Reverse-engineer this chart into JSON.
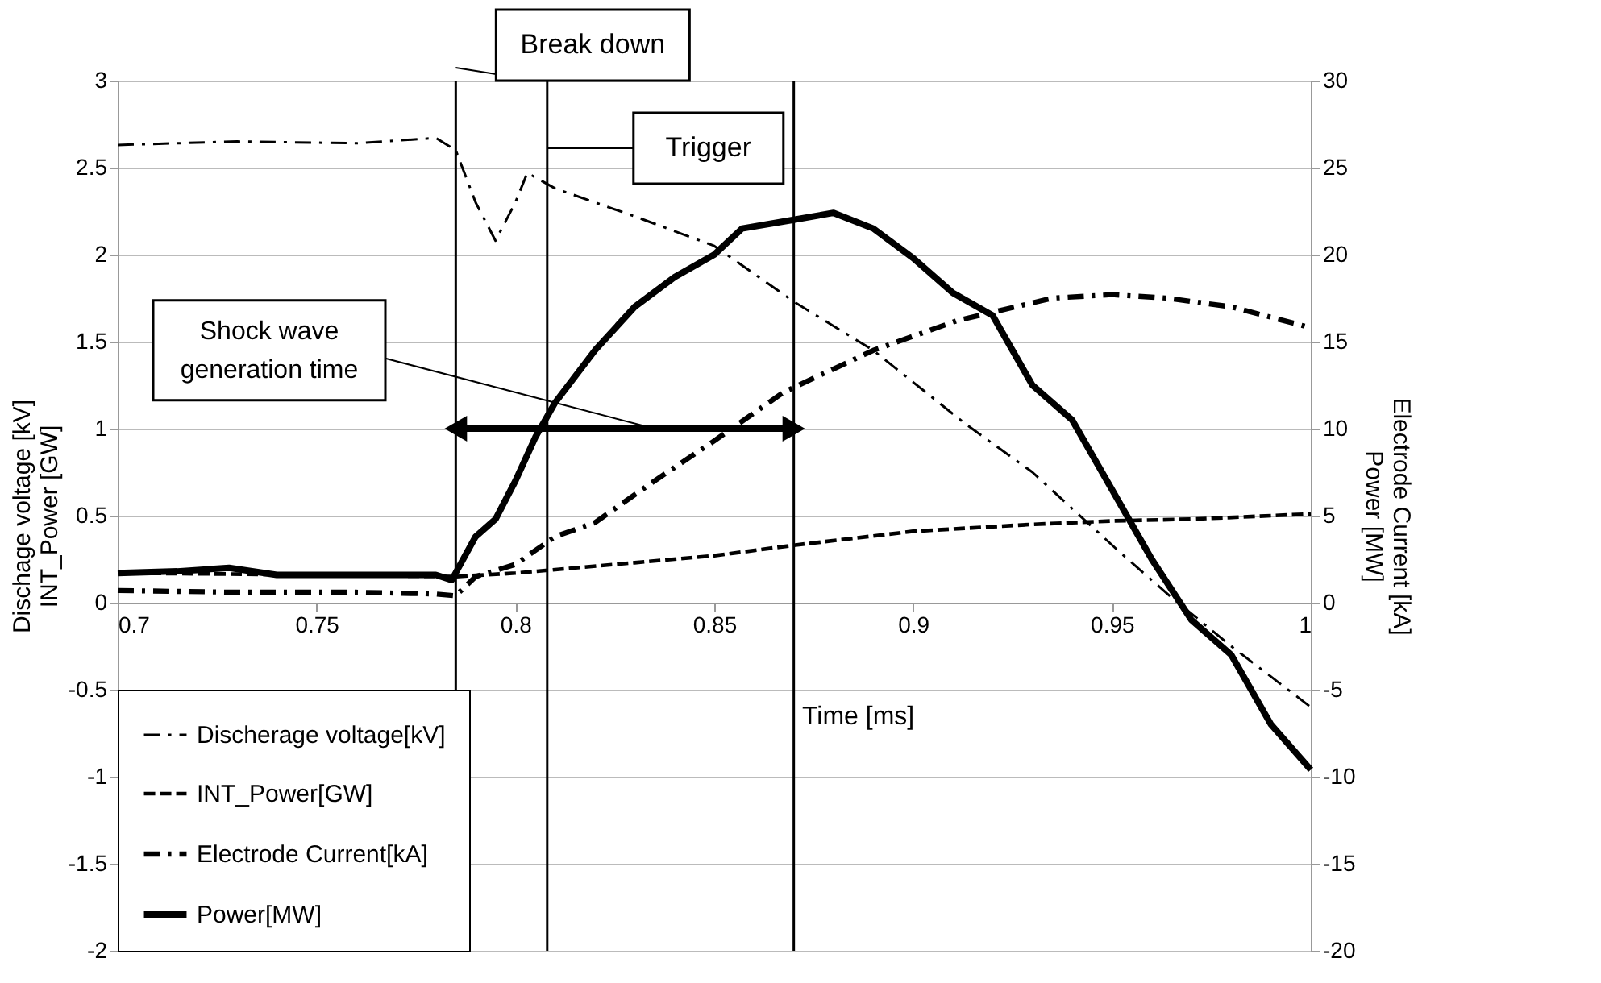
{
  "chart_data": {
    "type": "line",
    "xlabel": "Time [ms]",
    "ylabel": "Dischage voltage [kV]\nINT_Power [GW]",
    "y2label": "Electrode Current [kA]\nPower [MW]",
    "xlim": [
      0.7,
      1.0
    ],
    "xticks": [
      0.7,
      0.75,
      0.8,
      0.85,
      0.9,
      0.95,
      {
        "value": 1.0,
        "label": "1"
      }
    ],
    "ylim": [
      -2,
      3
    ],
    "yticks": [
      -2,
      -1.5,
      -1,
      -0.5,
      0,
      0.5,
      1,
      1.5,
      2,
      2.5,
      3
    ],
    "y2lim": [
      -20,
      30
    ],
    "y2ticks": [
      -20,
      -15,
      -10,
      -5,
      0,
      5,
      10,
      15,
      20,
      25,
      30
    ],
    "grid": "y",
    "legend": "bottom left",
    "series": [
      {
        "name": "Discherage voltage[kV]",
        "color": "#000000",
        "line_style": "dashdot",
        "x": [
          0.7,
          0.73,
          0.76,
          0.78,
          0.785,
          0.79,
          0.795,
          0.8,
          0.803,
          0.81,
          0.83,
          0.85,
          0.87,
          0.89,
          0.913,
          0.93,
          0.952,
          0.965,
          0.98,
          1.0
        ],
        "values": [
          2.63,
          2.65,
          2.64,
          2.67,
          2.6,
          2.3,
          2.08,
          2.3,
          2.47,
          2.38,
          2.22,
          2.05,
          1.73,
          1.45,
          1.03,
          0.75,
          0.29,
          0.03,
          -0.25,
          -0.6
        ]
      },
      {
        "name": "INT_Power[GW]",
        "color": "#000000",
        "line_style": "dashed",
        "x": [
          0.7,
          0.75,
          0.785,
          0.8,
          0.81,
          0.83,
          0.85,
          0.87,
          0.9,
          0.93,
          0.95,
          0.97,
          1.0
        ],
        "values": [
          0.17,
          0.16,
          0.15,
          0.17,
          0.19,
          0.23,
          0.27,
          0.33,
          0.41,
          0.45,
          0.47,
          0.48,
          0.51
        ]
      },
      {
        "name": "Electrode Current[kA]",
        "color": "#000000",
        "line_style": "dashdot",
        "axis": "y2",
        "x": [
          0.7,
          0.73,
          0.76,
          0.78,
          0.785,
          0.79,
          0.8,
          0.81,
          0.82,
          0.835,
          0.85,
          0.8675,
          0.89,
          0.911,
          0.935,
          0.95,
          0.964,
          0.98,
          1.0
        ],
        "values": [
          0.7,
          0.6,
          0.6,
          0.5,
          0.4,
          1.5,
          2.2,
          3.8,
          4.6,
          7.0,
          9.3,
          12.1,
          14.5,
          16.2,
          17.5,
          17.7,
          17.5,
          17.0,
          15.8
        ]
      },
      {
        "type": "line",
        "color": "#000000",
        "line_style": "solid",
        "marker": "triangle",
        "x": [
          0.785,
          0.87
        ],
        "values": [
          1,
          1
        ]
      },
      {
        "name": "Power[MW]",
        "color": "#000000",
        "line_style": "solid",
        "axis": "y2",
        "x": [
          0.7,
          0.715,
          0.728,
          0.74,
          0.75,
          0.765,
          0.78,
          0.784,
          0.79,
          0.795,
          0.8,
          0.805,
          0.81,
          0.82,
          0.83,
          0.84,
          0.85,
          0.857,
          0.87,
          0.88,
          0.89,
          0.9,
          0.91,
          0.92,
          0.93,
          0.94,
          0.95,
          0.96,
          0.97,
          0.98,
          0.99,
          1.0
        ],
        "values": [
          1.7,
          1.8,
          2.0,
          1.6,
          1.6,
          1.6,
          1.6,
          1.3,
          3.8,
          4.8,
          7.0,
          9.5,
          11.5,
          14.5,
          17.0,
          18.7,
          20.0,
          21.5,
          22.0,
          22.4,
          21.5,
          19.8,
          17.8,
          16.5,
          12.5,
          10.5,
          6.5,
          2.5,
          -1.0,
          -3.0,
          -7.0,
          -9.6
        ]
      }
    ],
    "ref_lines": [
      {
        "axis": "x",
        "value": 0.785,
        "label": "Break down",
        "color": "#000000"
      },
      {
        "axis": "x",
        "value": 0.808,
        "label": "Trigger",
        "color": "#000000"
      },
      {
        "axis": "x",
        "value": 0.87,
        "color": "#000000"
      }
    ],
    "annotations": [
      {
        "text": "Shock wave\ngeneration time",
        "x": 0.835,
        "y": 1
      }
    ]
  }
}
